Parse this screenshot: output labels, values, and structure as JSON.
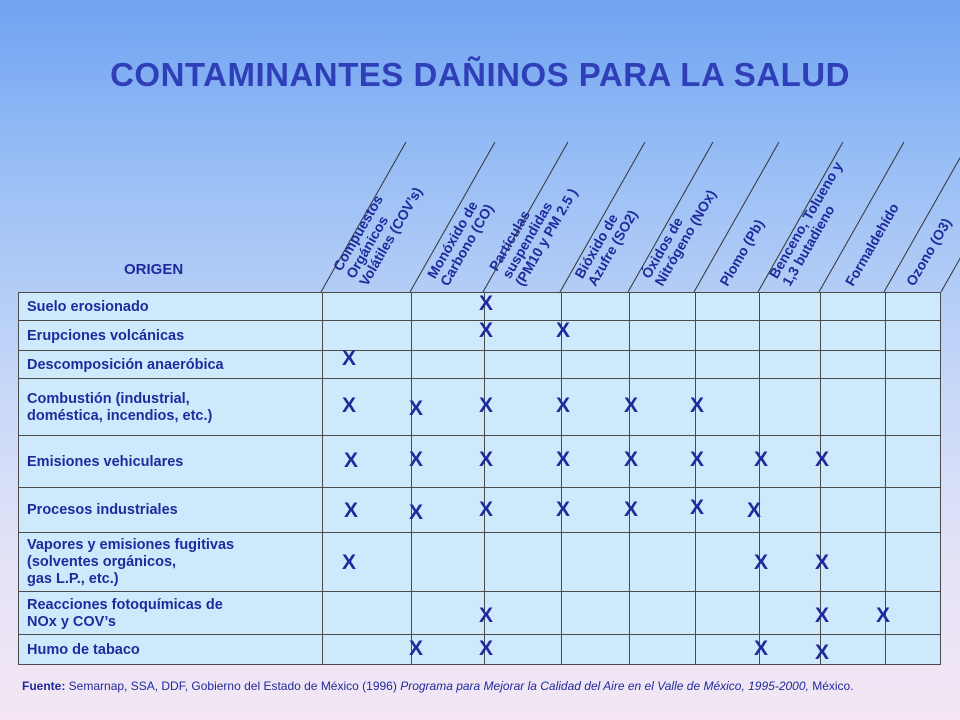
{
  "title": "CONTAMINANTES DAÑINOS PARA LA SALUD",
  "origin_header": "ORIGEN",
  "columns": [
    {
      "lines": [
        "Compuestos",
        "Orgánicos",
        "Volátiles (COV’s)"
      ]
    },
    {
      "lines": [
        "Monóxido de",
        "Carbono (CO)"
      ]
    },
    {
      "lines": [
        "Partículas",
        "suspendidas",
        "(PM10 y PM 2.5 )"
      ]
    },
    {
      "lines": [
        "Bióxido de",
        "Azufre (SO2)"
      ]
    },
    {
      "lines": [
        "Óxidos de",
        "Nitrógeno (NOx)"
      ]
    },
    {
      "lines": [
        "Plomo (Pb)"
      ]
    },
    {
      "lines": [
        "Benceno, Tolueno y",
        "1,3 butadieno"
      ]
    },
    {
      "lines": [
        "Formaldehído"
      ]
    },
    {
      "lines": [
        "Ozono (O3)"
      ]
    }
  ],
  "rows": [
    {
      "label": [
        "Suelo erosionado"
      ],
      "marks": [
        false,
        false,
        true,
        false,
        false,
        false,
        false,
        false,
        false
      ]
    },
    {
      "label": [
        "Erupciones volcánicas"
      ],
      "marks": [
        false,
        false,
        true,
        true,
        false,
        false,
        false,
        false,
        false
      ]
    },
    {
      "label": [
        "Descomposición anaeróbica"
      ],
      "marks": [
        true,
        false,
        false,
        false,
        false,
        false,
        false,
        false,
        false
      ]
    },
    {
      "label": [
        "Combustión (industrial,",
        "doméstica, incendios, etc.)"
      ],
      "marks": [
        true,
        true,
        true,
        true,
        true,
        true,
        false,
        false,
        false
      ]
    },
    {
      "label": [
        "Emisiones vehiculares"
      ],
      "marks": [
        true,
        true,
        true,
        true,
        true,
        true,
        true,
        true,
        false
      ]
    },
    {
      "label": [
        "Procesos industriales"
      ],
      "marks": [
        true,
        true,
        true,
        true,
        true,
        true,
        true,
        false,
        false
      ]
    },
    {
      "label": [
        "Vapores y emisiones fugitivas",
        "(solventes orgánicos,",
        "gas L.P., etc.)"
      ],
      "marks": [
        true,
        false,
        false,
        false,
        false,
        false,
        true,
        true,
        false
      ]
    },
    {
      "label": [
        "Reacciones fotoquímicas de",
        "NOx y COV’s"
      ],
      "marks": [
        false,
        false,
        true,
        false,
        false,
        false,
        false,
        true,
        true
      ]
    },
    {
      "label": [
        "Humo de tabaco"
      ],
      "marks": [
        false,
        true,
        true,
        false,
        false,
        false,
        true,
        true,
        false
      ]
    }
  ],
  "mark_symbol": "X",
  "source": {
    "prefix": "Fuente:",
    "text": " Semarnap, SSA, DDF, Gobierno del Estado de México (1996) ",
    "italic": "Programa para Mejorar la Calidad del Aire en el Valle de México, 1995-2000,",
    "suffix": " México."
  },
  "colors": {
    "text": "#1f2a9c",
    "title": "#2f3fb8",
    "row_bg": "#cfe9fc"
  }
}
